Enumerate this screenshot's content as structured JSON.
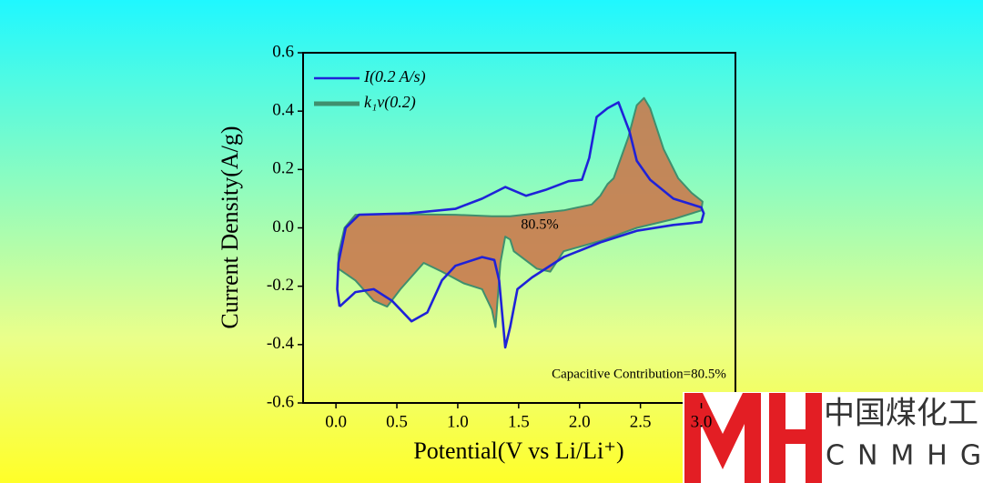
{
  "chart_data": {
    "type": "line",
    "xlabel": "Potential(V vs Li/Li⁺)",
    "ylabel": "Current Density(A/g)",
    "annotations": [
      "80.5%",
      "Capacitive Contribution=80.5%"
    ],
    "xlim": [
      -0.27,
      3.28
    ],
    "ylim": [
      -0.6,
      0.6
    ],
    "xticks": [
      {
        "value": 0,
        "label": "0.0"
      },
      {
        "value": 0.5,
        "label": "0.5"
      },
      {
        "value": 1,
        "label": "1.0"
      },
      {
        "value": 1.5,
        "label": "1.5"
      },
      {
        "value": 2,
        "label": "2.0"
      },
      {
        "value": 2.5,
        "label": "2.5"
      },
      {
        "value": 3,
        "label": "3.0"
      }
    ],
    "yticks": [
      0.6,
      0.4,
      0.2,
      {
        "value": 0,
        "label": "0.0"
      },
      -0.2,
      -0.4,
      -0.6
    ],
    "legend": "upper left",
    "series": [
      {
        "name": "I(0.2 A/s)",
        "color": "#1f22d8",
        "x": [
          0.03,
          0.16,
          0.31,
          0.46,
          0.62,
          0.75,
          0.87,
          0.98,
          1.2,
          1.3,
          1.34,
          1.39,
          1.43,
          1.49,
          1.61,
          1.87,
          2.17,
          2.47,
          2.77,
          3.0,
          3.02,
          3.0,
          2.77,
          2.58,
          2.47,
          2.41,
          2.32,
          2.23,
          2.14,
          2.08,
          2.02,
          1.91,
          1.72,
          1.56,
          1.39,
          1.2,
          0.98,
          0.6,
          0.19,
          0.08,
          0.02,
          0.01,
          0.03
        ],
        "values": [
          -0.27,
          -0.22,
          -0.21,
          -0.25,
          -0.32,
          -0.29,
          -0.18,
          -0.13,
          -0.1,
          -0.11,
          -0.18,
          -0.41,
          -0.34,
          -0.21,
          -0.17,
          -0.1,
          -0.05,
          -0.01,
          0.01,
          0.02,
          0.05,
          0.07,
          0.1,
          0.165,
          0.23,
          0.33,
          0.43,
          0.41,
          0.38,
          0.24,
          0.165,
          0.16,
          0.13,
          0.11,
          0.14,
          0.1,
          0.065,
          0.05,
          0.045,
          0.0,
          -0.12,
          -0.21,
          -0.27
        ]
      },
      {
        "name": "k₁v(0.2)",
        "color": "#3f8f6e",
        "fill_color": "#c97a4e",
        "x": [
          0.02,
          0.16,
          0.31,
          0.42,
          0.53,
          0.72,
          0.87,
          1.05,
          1.2,
          1.28,
          1.31,
          1.35,
          1.39,
          1.43,
          1.46,
          1.65,
          1.76,
          1.87,
          2.17,
          2.47,
          2.77,
          3.0,
          3.01,
          2.92,
          2.81,
          2.69,
          2.58,
          2.53,
          2.47,
          2.4,
          2.28,
          2.23,
          2.17,
          2.1,
          1.87,
          1.65,
          1.43,
          1.28,
          0.98,
          0.45,
          0.16,
          0.07,
          0.02,
          0.02
        ],
        "values": [
          -0.14,
          -0.18,
          -0.25,
          -0.27,
          -0.21,
          -0.12,
          -0.15,
          -0.19,
          -0.21,
          -0.28,
          -0.34,
          -0.12,
          -0.03,
          -0.04,
          -0.08,
          -0.14,
          -0.15,
          -0.08,
          -0.045,
          0.0,
          0.03,
          0.06,
          0.09,
          0.12,
          0.17,
          0.27,
          0.41,
          0.445,
          0.42,
          0.31,
          0.17,
          0.15,
          0.11,
          0.08,
          0.06,
          0.05,
          0.04,
          0.04,
          0.045,
          0.047,
          0.045,
          0.0,
          -0.09,
          -0.14
        ]
      }
    ]
  },
  "logo": {
    "text": "中国煤化工",
    "letters": "CNMHG"
  }
}
